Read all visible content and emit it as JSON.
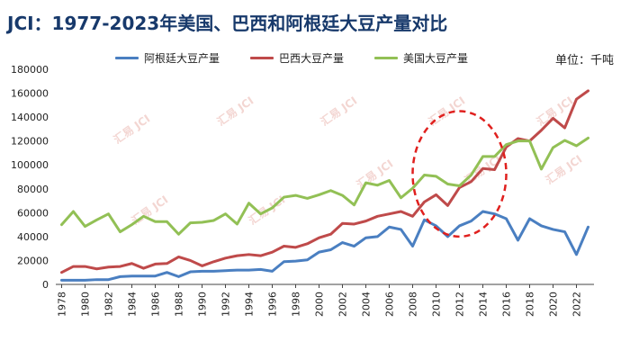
{
  "title": "JCI：1977-2023年美国、巴西和阿根廷大豆产量对比",
  "unit_label": "单位：千吨",
  "watermark": "汇易 JCI",
  "colors": {
    "argentina": "#4a7fc1",
    "brazil": "#bf4a4a",
    "usa": "#92c055",
    "highlight": "#e0201e",
    "title": "#17396b"
  },
  "chart_data": {
    "type": "line",
    "title": "JCI：1977-2023年美国、巴西和阿根廷大豆产量对比",
    "xlabel": "",
    "ylabel": "",
    "ylim": [
      0,
      180000
    ],
    "yticks": [
      0,
      20000,
      40000,
      60000,
      80000,
      100000,
      120000,
      140000,
      160000,
      180000
    ],
    "xticks": [
      1978,
      1980,
      1982,
      1984,
      1986,
      1988,
      1990,
      1992,
      1994,
      1996,
      1998,
      2000,
      2002,
      2004,
      2006,
      2008,
      2010,
      2012,
      2014,
      2016,
      2018,
      2020,
      2022
    ],
    "legend_position": "top",
    "grid": false,
    "x": [
      1978,
      1979,
      1980,
      1981,
      1982,
      1983,
      1984,
      1985,
      1986,
      1987,
      1988,
      1989,
      1990,
      1991,
      1992,
      1993,
      1994,
      1995,
      1996,
      1997,
      1998,
      1999,
      2000,
      2001,
      2002,
      2003,
      2004,
      2005,
      2006,
      2007,
      2008,
      2009,
      2010,
      2011,
      2012,
      2013,
      2014,
      2015,
      2016,
      2017,
      2018,
      2019,
      2020,
      2021,
      2022,
      2023
    ],
    "series": [
      {
        "name": "阿根廷大豆产量",
        "color_key": "argentina",
        "values": [
          3500,
          3500,
          3500,
          4000,
          4000,
          6500,
          7000,
          7000,
          7000,
          10000,
          6500,
          10500,
          11000,
          11000,
          11500,
          12000,
          12000,
          12500,
          11000,
          19000,
          19500,
          20500,
          27000,
          29000,
          35000,
          32000,
          39000,
          40000,
          48000,
          46000,
          32000,
          54000,
          49000,
          40000,
          49000,
          53000,
          61000,
          59000,
          55000,
          37000,
          55000,
          49000,
          46000,
          44000,
          25000,
          48000
        ]
      },
      {
        "name": "巴西大豆产量",
        "color_key": "brazil",
        "values": [
          10000,
          15000,
          15000,
          13000,
          14500,
          15000,
          17500,
          13500,
          17000,
          17500,
          23000,
          20000,
          15500,
          19000,
          22000,
          24000,
          25000,
          24000,
          27000,
          32000,
          31000,
          34000,
          39000,
          42000,
          51000,
          50500,
          53000,
          57000,
          59000,
          61000,
          57000,
          69000,
          75000,
          66000,
          81000,
          86000,
          97000,
          96000,
          115000,
          122000,
          120000,
          129000,
          139000,
          131000,
          155000,
          162000
        ]
      },
      {
        "name": "美国大豆产量",
        "color_key": "usa",
        "values": [
          50000,
          61000,
          48500,
          54000,
          59000,
          44000,
          50000,
          57000,
          52500,
          52500,
          42000,
          51500,
          52000,
          53500,
          59000,
          50500,
          68000,
          59000,
          64000,
          73000,
          74500,
          72000,
          75000,
          78500,
          74500,
          66500,
          85000,
          83000,
          87000,
          72500,
          80500,
          91500,
          90500,
          84000,
          82500,
          91500,
          107000,
          107000,
          117000,
          120000,
          120000,
          96500,
          114500,
          120500,
          116000,
          122500
        ]
      }
    ],
    "annotations": [
      {
        "type": "dashed-ellipse",
        "x_range": [
          2008,
          2016
        ],
        "y_range": [
          40000,
          145000
        ]
      }
    ]
  }
}
